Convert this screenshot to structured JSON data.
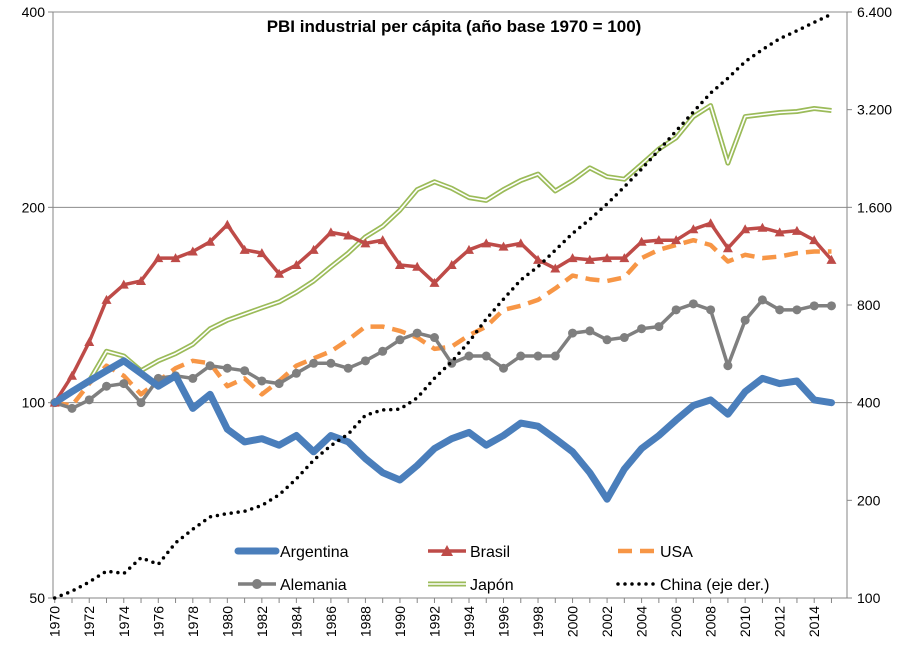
{
  "chart_data": {
    "type": "line",
    "title": "PBI industrial per cápita (año base 1970 = 100)",
    "scale": "log",
    "grid": "horizontal",
    "legend_position": "bottom",
    "x": [
      1970,
      1971,
      1972,
      1973,
      1974,
      1975,
      1976,
      1977,
      1978,
      1979,
      1980,
      1981,
      1982,
      1983,
      1984,
      1985,
      1986,
      1987,
      1988,
      1989,
      1990,
      1991,
      1992,
      1993,
      1994,
      1995,
      1996,
      1997,
      1998,
      1999,
      2000,
      2001,
      2002,
      2003,
      2004,
      2005,
      2006,
      2007,
      2008,
      2009,
      2010,
      2011,
      2012,
      2013,
      2014,
      2015
    ],
    "x_tick_labels": [
      "1970",
      "1972",
      "1974",
      "1976",
      "1978",
      "1980",
      "1982",
      "1984",
      "1986",
      "1988",
      "1990",
      "1992",
      "1994",
      "1996",
      "1998",
      "2000",
      "2002",
      "2004",
      "2006",
      "2008",
      "2010",
      "2012",
      "2014"
    ],
    "y_left": {
      "ticks": [
        50,
        100,
        200,
        400
      ],
      "tick_labels": [
        "50",
        "100",
        "200",
        "400"
      ],
      "range": [
        50,
        400
      ]
    },
    "y_right": {
      "ticks": [
        100,
        200,
        400,
        800,
        1600,
        3200,
        6400
      ],
      "tick_labels": [
        "100",
        "200",
        "400",
        "800",
        "1.600",
        "3.200",
        "6.400"
      ],
      "range": [
        100,
        6400
      ]
    },
    "series": [
      {
        "name": "Argentina",
        "axis": "left",
        "color": "#4a7ebb",
        "style": "thick-solid",
        "values": [
          100,
          104,
          108,
          112,
          116,
          111,
          106,
          110,
          98,
          103,
          91,
          87,
          88,
          86,
          89,
          84,
          89,
          87,
          82,
          78,
          76,
          80,
          85,
          88,
          90,
          86,
          89,
          93,
          92,
          88,
          84,
          78,
          71,
          79,
          85,
          89,
          94,
          99,
          101,
          96,
          104,
          109,
          107,
          108,
          101,
          100
        ]
      },
      {
        "name": "Brasil",
        "axis": "left",
        "color": "#be4b48",
        "style": "solid-triangle",
        "values": [
          100,
          110,
          124,
          144,
          152,
          154,
          167,
          167,
          171,
          177,
          188,
          172,
          170,
          158,
          163,
          172,
          183,
          181,
          176,
          178,
          163,
          162,
          153,
          163,
          172,
          176,
          174,
          176,
          166,
          161,
          167,
          166,
          167,
          167,
          177,
          178,
          178,
          185,
          189,
          173,
          185,
          186,
          183,
          184,
          178,
          166
        ]
      },
      {
        "name": "USA",
        "axis": "left",
        "color": "#f79646",
        "style": "dashed",
        "values": [
          100,
          99,
          107,
          114,
          110,
          103,
          108,
          113,
          116,
          115,
          106,
          109,
          103,
          108,
          114,
          117,
          120,
          125,
          131,
          131,
          129,
          126,
          121,
          122,
          127,
          131,
          139,
          141,
          144,
          150,
          157,
          155,
          154,
          156,
          167,
          172,
          175,
          178,
          175,
          165,
          169,
          167,
          168,
          170,
          171,
          171
        ]
      },
      {
        "name": "Alemania",
        "axis": "left",
        "color": "#7f7f7f",
        "style": "solid-circle",
        "values": [
          100,
          98,
          101,
          106,
          107,
          100,
          109,
          110,
          109,
          114,
          113,
          112,
          108,
          107,
          111,
          115,
          115,
          113,
          116,
          120,
          125,
          128,
          126,
          115,
          118,
          118,
          113,
          118,
          118,
          118,
          128,
          129,
          125,
          126,
          130,
          131,
          139,
          142,
          139,
          114,
          134,
          144,
          139,
          139,
          141,
          141
        ]
      },
      {
        "name": "Japón",
        "axis": "left",
        "color": "#9bbb59",
        "style": "double-line",
        "values": [
          100,
          104,
          108,
          120,
          118,
          112,
          116,
          119,
          123,
          130,
          134,
          137,
          140,
          143,
          148,
          154,
          162,
          170,
          180,
          187,
          198,
          213,
          219,
          214,
          207,
          205,
          213,
          220,
          225,
          212,
          220,
          230,
          223,
          221,
          233,
          246,
          256,
          276,
          287,
          234,
          276,
          278,
          280,
          281,
          284,
          282
        ]
      },
      {
        "name": "China (eje der.)",
        "axis": "right",
        "color": "#000000",
        "style": "dotted",
        "values": [
          100,
          105,
          112,
          121,
          119,
          133,
          127,
          148,
          163,
          178,
          182,
          185,
          193,
          208,
          233,
          266,
          295,
          320,
          366,
          380,
          382,
          414,
          476,
          535,
          616,
          724,
          834,
          956,
          1050,
          1180,
          1330,
          1470,
          1640,
          1850,
          2100,
          2400,
          2750,
          3150,
          3600,
          4000,
          4500,
          4900,
          5300,
          5600,
          5950,
          6300
        ]
      }
    ]
  }
}
